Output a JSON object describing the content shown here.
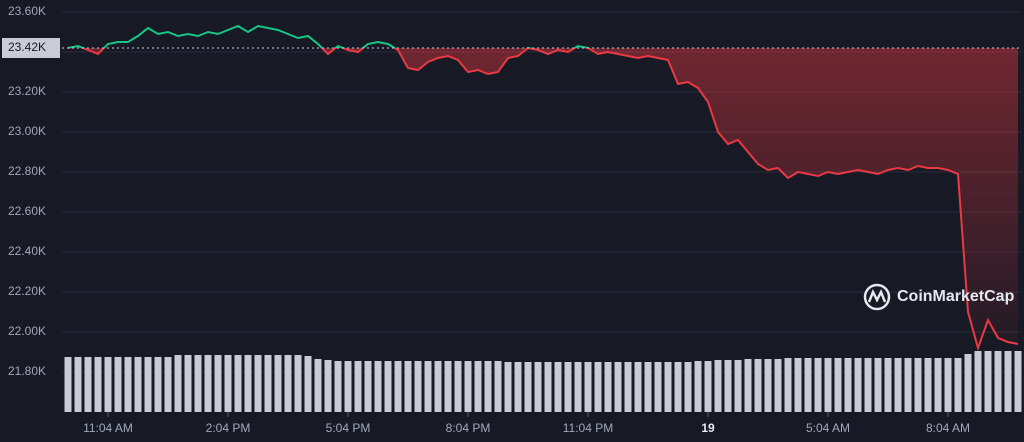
{
  "chart_data": {
    "type": "line",
    "categories": [
      null,
      null,
      null,
      null,
      "11:04 AM",
      null,
      null,
      null,
      null,
      null,
      null,
      null,
      null,
      null,
      null,
      null,
      "2:04 PM",
      null,
      null,
      null,
      null,
      null,
      null,
      null,
      null,
      null,
      null,
      null,
      "5:04 PM",
      null,
      null,
      null,
      null,
      null,
      null,
      null,
      null,
      null,
      null,
      null,
      "8:04 PM",
      null,
      null,
      null,
      null,
      null,
      null,
      null,
      null,
      null,
      null,
      null,
      "11:04 PM",
      null,
      null,
      null,
      null,
      null,
      null,
      null,
      null,
      null,
      null,
      null,
      "19",
      null,
      null,
      null,
      null,
      null,
      null,
      null,
      null,
      null,
      null,
      null,
      "5:04 AM",
      null,
      null,
      null,
      null,
      null,
      null,
      null,
      null,
      null,
      null,
      null,
      "8:04 AM",
      null,
      null,
      null,
      null,
      null,
      null,
      null
    ],
    "series": [
      {
        "values": [
          23.42,
          23.43,
          23.41,
          23.39,
          23.44,
          23.45,
          23.45,
          23.48,
          23.52,
          23.49,
          23.5,
          23.48,
          23.49,
          23.48,
          23.5,
          23.49,
          23.51,
          23.53,
          23.5,
          23.53,
          23.52,
          23.51,
          23.49,
          23.47,
          23.48,
          23.44,
          23.39,
          23.43,
          23.41,
          23.4,
          23.44,
          23.45,
          23.44,
          23.41,
          23.32,
          23.31,
          23.35,
          23.37,
          23.38,
          23.36,
          23.3,
          23.31,
          23.29,
          23.3,
          23.37,
          23.38,
          23.42,
          23.41,
          23.39,
          23.41,
          23.4,
          23.43,
          23.42,
          23.39,
          23.4,
          23.39,
          23.38,
          23.37,
          23.38,
          23.37,
          23.36,
          23.24,
          23.25,
          23.22,
          23.15,
          23.0,
          22.94,
          22.96,
          22.9,
          22.84,
          22.81,
          22.82,
          22.77,
          22.8,
          22.79,
          22.78,
          22.8,
          22.79,
          22.8,
          22.81,
          22.8,
          22.79,
          22.81,
          22.82,
          22.81,
          22.83,
          22.82,
          22.82,
          22.81,
          22.79,
          22.1,
          21.92,
          22.06,
          21.97,
          21.95,
          21.94
        ]
      }
    ],
    "volume": [
      55,
      55,
      55,
      55,
      55,
      55,
      55,
      55,
      55,
      55,
      55,
      57,
      57,
      57,
      57,
      57,
      57,
      57,
      57,
      57,
      57,
      57,
      57,
      57,
      56,
      53,
      52,
      51,
      51,
      51,
      51,
      51,
      51,
      51,
      51,
      51,
      51,
      51,
      51,
      51,
      51,
      51,
      51,
      51,
      50,
      50,
      50,
      50,
      50,
      50,
      50,
      50,
      50,
      50,
      50,
      50,
      50,
      50,
      50,
      50,
      50,
      50,
      50,
      51,
      51,
      52,
      52,
      52,
      53,
      53,
      53,
      53,
      54,
      54,
      54,
      54,
      54,
      54,
      54,
      54,
      54,
      54,
      54,
      54,
      54,
      54,
      54,
      54,
      54,
      54,
      58,
      61,
      61,
      61,
      61,
      61
    ],
    "up_color": "#16c784",
    "down_color": "#ea3943",
    "volume_color": "#c9ccd6",
    "reference": {
      "value": 23.42,
      "label": "23.42K"
    },
    "ylim": [
      21.6,
      23.66
    ],
    "yticks": [
      {
        "value": 21.8,
        "label": "21.80K"
      },
      {
        "value": 22.0,
        "label": "22.00K"
      },
      {
        "value": 22.2,
        "label": "22.20K"
      },
      {
        "value": 22.4,
        "label": "22.40K"
      },
      {
        "value": 22.6,
        "label": "22.60K"
      },
      {
        "value": 22.8,
        "label": "22.80K"
      },
      {
        "value": 23.0,
        "label": "23.00K"
      },
      {
        "value": 23.2,
        "label": "23.20K"
      },
      {
        "value": 23.4,
        "label": "23.40K"
      },
      {
        "value": 23.6,
        "label": "23.60K"
      }
    ],
    "grid": true,
    "watermark": "CoinMarketCap"
  }
}
